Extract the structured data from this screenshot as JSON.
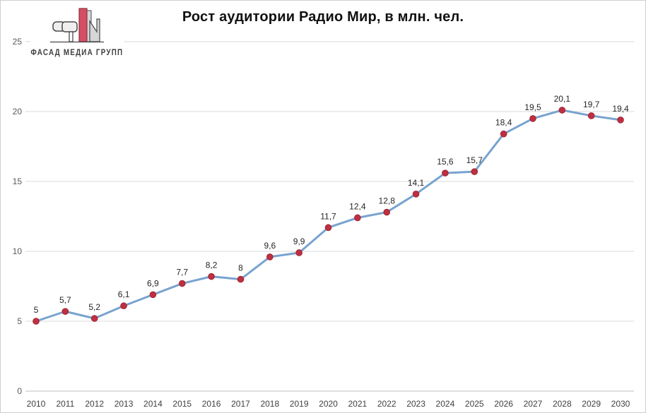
{
  "window": {
    "background": "#ffffff",
    "border_color": "#cfcfcf"
  },
  "logo": {
    "text": "ФАСАД МЕДИА ГРУПП",
    "accent_color": "#d44f63",
    "accent_dark": "#8c3240",
    "gray_fill": "#d6d6d6",
    "light_fill": "#efefef",
    "outline_color": "#4a4a4a",
    "text_color": "#3d3d3d"
  },
  "chart_data": {
    "type": "line",
    "title": "Рост аудитории Радио Мир, в млн. чел.",
    "x": [
      2010,
      2011,
      2012,
      2013,
      2014,
      2015,
      2016,
      2017,
      2018,
      2019,
      2020,
      2021,
      2022,
      2023,
      2024,
      2025,
      2026,
      2027,
      2028,
      2029,
      2030
    ],
    "values": [
      5,
      5.7,
      5.2,
      6.1,
      6.9,
      7.7,
      8.2,
      8,
      9.6,
      9.9,
      11.7,
      12.4,
      12.8,
      14.1,
      15.6,
      15.7,
      18.4,
      19.5,
      20.1,
      19.7,
      19.4
    ],
    "value_labels": [
      "5",
      "5,7",
      "5,2",
      "6,1",
      "6,9",
      "7,7",
      "8,2",
      "8",
      "9,6",
      "9,9",
      "11,7",
      "12,4",
      "12,8",
      "14,1",
      "15,6",
      "15,7",
      "18,4",
      "19,5",
      "20,1",
      "19,7",
      "19,4"
    ],
    "ylim": [
      0,
      25
    ],
    "yticks": [
      0,
      5,
      10,
      15,
      20,
      25
    ],
    "grid": true,
    "legend": "none",
    "xlabel": "",
    "ylabel": "",
    "line_color": "#78a3cf",
    "marker_color": "#c02f40",
    "marker_edge_color": "#9e2433",
    "data_label_color": "#262626",
    "x_tick_color": "#404040",
    "y_tick_color": "#595959",
    "gridline_color": "#d9d9d9",
    "axis_line_color": "#bfbfbf"
  }
}
